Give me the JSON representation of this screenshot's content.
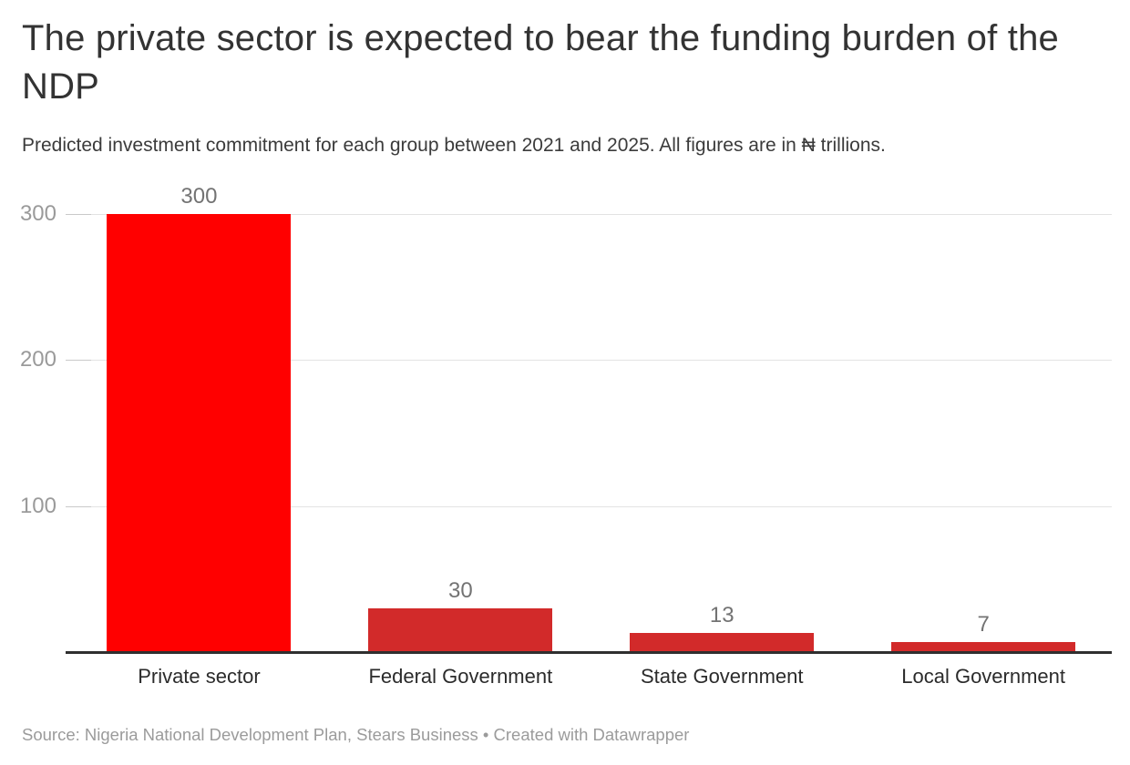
{
  "header": {
    "title": "The private sector is expected to bear the funding burden of the NDP",
    "subtitle": "Predicted investment commitment for each group between 2021 and 2025. All figures are in ₦ trillions."
  },
  "chart_data": {
    "type": "bar",
    "title": "The private sector is expected to bear the funding burden of the NDP",
    "subtitle": "Predicted investment commitment for each group between 2021 and 2025. All figures are in ₦ trillions.",
    "categories": [
      "Private sector",
      "Federal Government",
      "State Government",
      "Local Government"
    ],
    "values": [
      300,
      30,
      13,
      7
    ],
    "value_labels": [
      "300",
      "30",
      "13",
      "7"
    ],
    "bar_colors": [
      "#ff0000",
      "#d22a2a",
      "#d22a2a",
      "#d22a2a"
    ],
    "y_ticks": [
      100,
      200,
      300
    ],
    "ylim": [
      0,
      300
    ],
    "grid": "horizontal gridlines on",
    "legend": "none",
    "xlabel": "",
    "ylabel": ""
  },
  "footer": {
    "source": "Source: Nigeria National Development Plan, Stears Business • Created with Datawrapper"
  },
  "colors": {
    "bar_primary": "#ff0000",
    "bar_secondary": "#d22a2a",
    "axis_line": "#2f2f2f",
    "gridline": "#e3e3e3",
    "grid_tick": "#c9c9c9",
    "y_tick_label": "#9a9a9a",
    "value_label": "#737373",
    "category_label": "#2b2b2b",
    "title_text": "#333333",
    "subtitle_text": "#3b3b3b",
    "source_text": "#9b9b9b"
  }
}
